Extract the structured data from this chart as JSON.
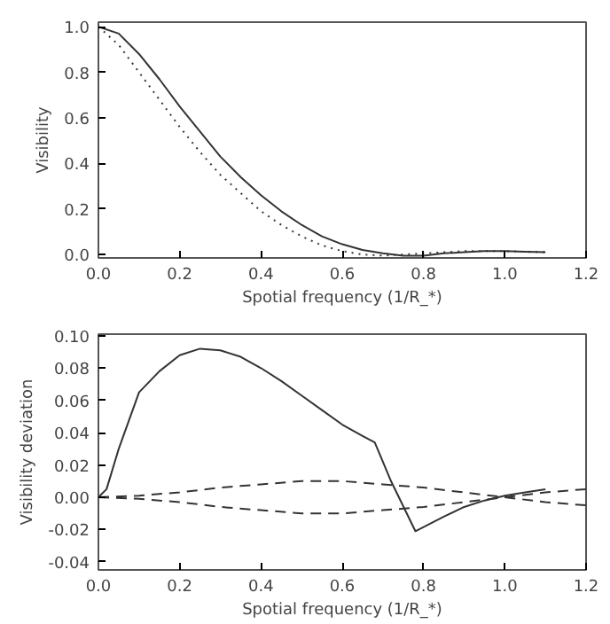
{
  "chart_data": [
    {
      "type": "line",
      "xlabel": "Spotial frequency (1/R_*)",
      "ylabel": "Visibility",
      "xlim": [
        0,
        1.2
      ],
      "ylim": [
        -0.015,
        1.02
      ],
      "xticks": [
        {
          "value": 0,
          "label": "0.0"
        },
        {
          "value": 0.2,
          "label": "0.2"
        },
        {
          "value": 0.4,
          "label": "0.4"
        },
        {
          "value": 0.6,
          "label": "0.6"
        },
        {
          "value": 0.8,
          "label": "0.8"
        },
        {
          "value": 1,
          "label": "1.0"
        },
        {
          "value": 1.2,
          "label": "1.2"
        }
      ],
      "yticks": [
        {
          "value": 0,
          "label": "0.0"
        },
        {
          "value": 0.2,
          "label": "0.2"
        },
        {
          "value": 0.4,
          "label": "0.4"
        },
        {
          "value": 0.6,
          "label": "0.6"
        },
        {
          "value": 0.8,
          "label": "0.8"
        },
        {
          "value": 1,
          "label": "1.0"
        }
      ],
      "grid": false,
      "series": [
        {
          "color": "#333333",
          "line_style": "solid",
          "x": [
            0,
            0.05,
            0.1,
            0.15,
            0.2,
            0.25,
            0.3,
            0.35,
            0.4,
            0.45,
            0.5,
            0.55,
            0.6,
            0.65,
            0.7,
            0.75,
            0.8,
            0.85,
            0.9,
            0.95,
            1.0,
            1.05,
            1.1
          ],
          "values": [
            1.0,
            0.97,
            0.88,
            0.77,
            0.65,
            0.54,
            0.43,
            0.34,
            0.26,
            0.19,
            0.13,
            0.08,
            0.045,
            0.02,
            0.005,
            -0.005,
            -0.005,
            0.005,
            0.01,
            0.015,
            0.015,
            0.012,
            0.01
          ]
        },
        {
          "color": "#333333",
          "line_style": "dotted",
          "x": [
            0,
            0.05,
            0.1,
            0.15,
            0.2,
            0.25,
            0.3,
            0.35,
            0.4,
            0.45,
            0.5,
            0.55,
            0.6,
            0.65,
            0.7,
            0.75,
            0.8,
            0.85,
            0.9,
            0.95,
            1.0,
            1.05,
            1.1
          ],
          "values": [
            1.0,
            0.92,
            0.8,
            0.68,
            0.56,
            0.45,
            0.35,
            0.27,
            0.19,
            0.13,
            0.08,
            0.04,
            0.015,
            0.0,
            -0.005,
            0.0,
            0.005,
            0.01,
            0.015,
            0.015,
            0.015,
            0.012,
            0.01
          ]
        }
      ]
    },
    {
      "type": "line",
      "xlabel": "Spotial frequency (1/R_*)",
      "ylabel": "Visibility deviation",
      "xlim": [
        0,
        1.2
      ],
      "ylim": [
        -0.045,
        0.101
      ],
      "xticks": [
        {
          "value": 0,
          "label": "0.0"
        },
        {
          "value": 0.2,
          "label": "0.2"
        },
        {
          "value": 0.4,
          "label": "0.4"
        },
        {
          "value": 0.6,
          "label": "0.6"
        },
        {
          "value": 0.8,
          "label": "0.8"
        },
        {
          "value": 1,
          "label": "1.0"
        },
        {
          "value": 1.2,
          "label": "1.2"
        }
      ],
      "yticks": [
        {
          "value": -0.04,
          "label": "-0.04"
        },
        {
          "value": -0.02,
          "label": "-0.02"
        },
        {
          "value": 0,
          "label": "0.00"
        },
        {
          "value": 0.02,
          "label": "0.02"
        },
        {
          "value": 0.04,
          "label": "0.04"
        },
        {
          "value": 0.06,
          "label": "0.06"
        },
        {
          "value": 0.08,
          "label": "0.08"
        },
        {
          "value": 0.1,
          "label": "0.10"
        }
      ],
      "grid": false,
      "series": [
        {
          "color": "#333333",
          "line_style": "solid",
          "x": [
            0,
            0.02,
            0.05,
            0.1,
            0.15,
            0.2,
            0.25,
            0.3,
            0.35,
            0.4,
            0.45,
            0.5,
            0.55,
            0.6,
            0.65,
            0.68,
            0.72,
            0.78,
            0.85,
            0.9,
            0.95,
            1.0,
            1.05,
            1.1
          ],
          "values": [
            0,
            0.005,
            0.03,
            0.065,
            0.078,
            0.088,
            0.092,
            0.091,
            0.087,
            0.08,
            0.072,
            0.063,
            0.054,
            0.045,
            0.038,
            0.034,
            0.01,
            -0.021,
            -0.012,
            -0.006,
            -0.002,
            0.001,
            0.003,
            0.005
          ]
        },
        {
          "color": "#333333",
          "line_style": "dashed",
          "x": [
            0,
            0.1,
            0.2,
            0.3,
            0.4,
            0.5,
            0.6,
            0.7,
            0.8,
            0.9,
            1.0,
            1.1,
            1.2
          ],
          "values": [
            0,
            0.001,
            0.003,
            0.006,
            0.008,
            0.01,
            0.01,
            0.008,
            0.006,
            0.003,
            0.0,
            -0.003,
            -0.005
          ]
        },
        {
          "color": "#333333",
          "line_style": "dashed",
          "x": [
            0,
            0.1,
            0.2,
            0.3,
            0.4,
            0.5,
            0.6,
            0.7,
            0.8,
            0.9,
            1.0,
            1.1,
            1.2
          ],
          "values": [
            0,
            -0.001,
            -0.003,
            -0.006,
            -0.008,
            -0.01,
            -0.01,
            -0.008,
            -0.006,
            -0.003,
            0.0,
            0.003,
            0.005
          ]
        }
      ]
    }
  ]
}
